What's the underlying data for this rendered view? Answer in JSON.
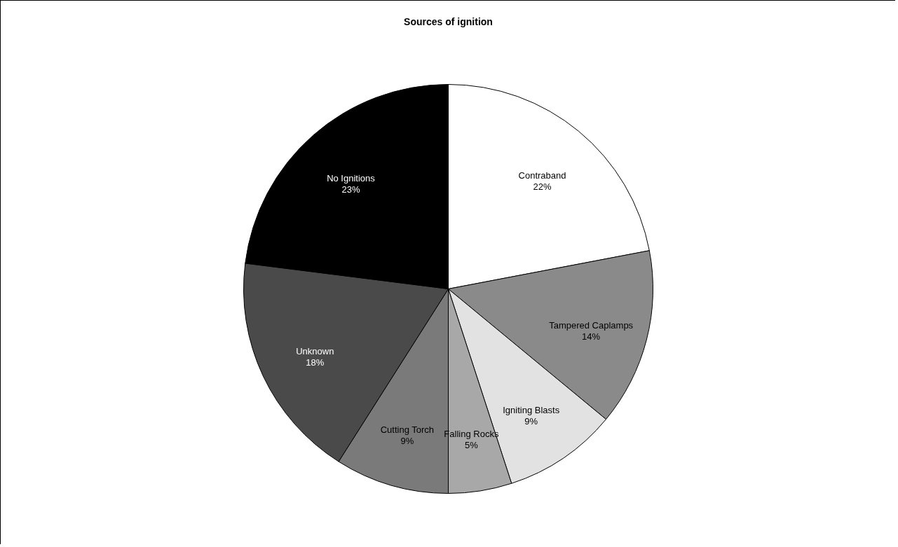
{
  "chart_data": {
    "type": "pie",
    "title": "Sources of ignition",
    "categories": [
      "Contraband",
      "Tampered Caplamps",
      "Igniting Blasts",
      "Falling Rocks",
      "Cutting Torch",
      "Unknown",
      "No Ignitions"
    ],
    "values": [
      22,
      14,
      9,
      5,
      9,
      18,
      23
    ],
    "colors": [
      "#ffffff",
      "#8a8a8a",
      "#e2e2e2",
      "#a8a8a8",
      "#7a7a7a",
      "#4a4a4a",
      "#000000"
    ],
    "value_labels": [
      "22%",
      "14%",
      "9%",
      "5%",
      "9%",
      "18%",
      "23%"
    ],
    "legend": false
  }
}
